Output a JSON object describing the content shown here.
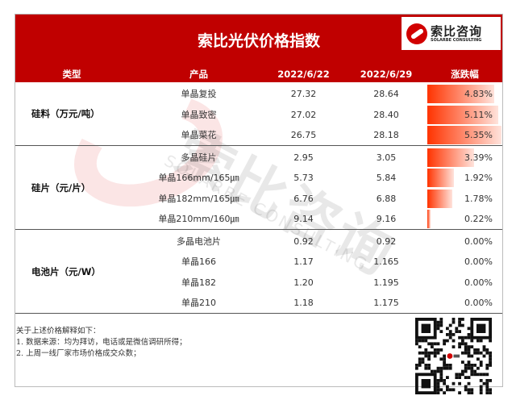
{
  "title": "索比光伏价格指数",
  "logo": {
    "cn": "索比咨询",
    "en": "SOLARBE CONSULTING"
  },
  "watermark": {
    "cn": "索比咨询",
    "en": "SOLARBE CONSULTING"
  },
  "headers": [
    "类型",
    "产品",
    "2022/6/22",
    "2022/6/29",
    "涨跌幅"
  ],
  "groups": [
    {
      "name": "硅料（万元/吨）",
      "rows": [
        {
          "product": "单晶复投",
          "p1": "27.32",
          "p2": "28.64",
          "change": "4.83%",
          "change_value": 4.83
        },
        {
          "product": "单晶致密",
          "p1": "27.02",
          "p2": "28.40",
          "change": "5.11%",
          "change_value": 5.11
        },
        {
          "product": "单晶菜花",
          "p1": "26.75",
          "p2": "28.18",
          "change": "5.35%",
          "change_value": 5.35
        }
      ]
    },
    {
      "name": "硅片（元/片）",
      "rows": [
        {
          "product": "多晶硅片",
          "p1": "2.95",
          "p2": "3.05",
          "change": "3.39%",
          "change_value": 3.39
        },
        {
          "product": "单晶166mm/165㎛",
          "p1": "5.73",
          "p2": "5.84",
          "change": "1.92%",
          "change_value": 1.92
        },
        {
          "product": "单晶182mm/165㎛",
          "p1": "6.76",
          "p2": "6.88",
          "change": "1.78%",
          "change_value": 1.78
        },
        {
          "product": "单晶210mm/160㎛",
          "p1": "9.14",
          "p2": "9.16",
          "change": "0.22%",
          "change_value": 0.22
        }
      ]
    },
    {
      "name": "电池片（元/W）",
      "rows": [
        {
          "product": "多晶电池片",
          "p1": "0.92",
          "p2": "0.92",
          "change": "0.00%",
          "change_value": 0
        },
        {
          "product": "单晶166",
          "p1": "1.17",
          "p2": "1.165",
          "change": "0.00%",
          "change_value": 0
        },
        {
          "product": "单晶182",
          "p1": "1.20",
          "p2": "1.195",
          "change": "0.00%",
          "change_value": 0
        },
        {
          "product": "单晶210",
          "p1": "1.18",
          "p2": "1.175",
          "change": "0.00%",
          "change_value": 0
        }
      ]
    }
  ],
  "notes": [
    "关于上述价格解释如下：",
    "1. 数据来源：均为拜访，电话或是微信调研所得；",
    "2. 上周一线厂家市场价格成交众数；"
  ],
  "colors": {
    "header": "#c00000",
    "bar": "#ff3300"
  }
}
